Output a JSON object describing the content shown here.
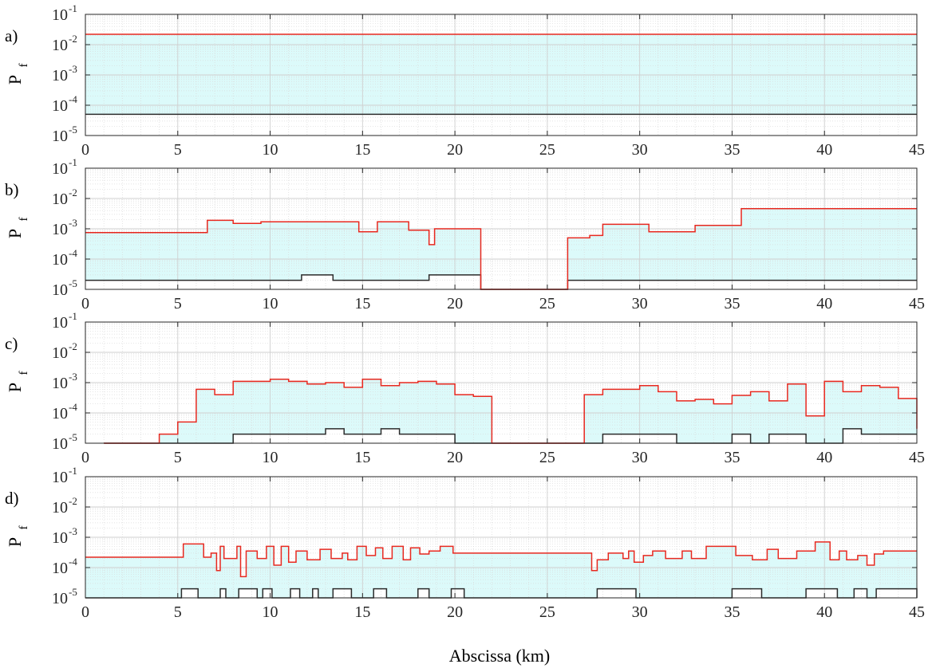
{
  "figure": {
    "xlabel": "Abscissa (km)",
    "ylabel_main": "P",
    "ylabel_sub": "f",
    "colors": {
      "upper": "#e8281f",
      "lower": "#2b2b2b",
      "fill": "#dcfafa",
      "grid": "#d9d9d9"
    }
  },
  "chart_data": [
    {
      "type": "line",
      "panel": "a)",
      "xlim": [
        0,
        45
      ],
      "ylim": [
        1e-05,
        0.1
      ],
      "yscale": "log",
      "xticks": [
        0,
        5,
        10,
        15,
        20,
        25,
        30,
        35,
        40,
        45
      ],
      "ytick_exponents": [
        -5,
        -4,
        -3,
        -2,
        -1
      ],
      "grid": true,
      "series": [
        {
          "role": "upper",
          "x": [
            0,
            45
          ],
          "y": [
            0.022,
            0.022
          ]
        },
        {
          "role": "lower",
          "x": [
            0,
            45
          ],
          "y": [
            5e-05,
            5e-05
          ]
        }
      ]
    },
    {
      "type": "line",
      "panel": "b)",
      "xlim": [
        0,
        45
      ],
      "ylim": [
        1e-05,
        0.1
      ],
      "yscale": "log",
      "xticks": [
        0,
        5,
        10,
        15,
        20,
        25,
        30,
        35,
        40,
        45
      ],
      "ytick_exponents": [
        -5,
        -4,
        -3,
        -2,
        -1
      ],
      "grid": true,
      "series": [
        {
          "role": "upper",
          "x": [
            0,
            6.6,
            8,
            9.5,
            12.5,
            14.8,
            15.8,
            17.5,
            18.6,
            18.9,
            21.4,
            26.1,
            27.3,
            28,
            30.5,
            33,
            35.5,
            45
          ],
          "y": [
            0.00075,
            0.0019,
            0.0015,
            0.0017,
            0.0017,
            0.0008,
            0.0017,
            0.0009,
            0.0003,
            0.001,
            1e-05,
            0.0005,
            0.0006,
            0.0014,
            0.0008,
            0.0013,
            0.0046,
            0.0046
          ]
        },
        {
          "role": "lower",
          "x": [
            0,
            11.7,
            13.4,
            18.6,
            21.4,
            26.1,
            45
          ],
          "y": [
            2e-05,
            3e-05,
            2e-05,
            3e-05,
            1e-05,
            2e-05,
            2e-05
          ]
        }
      ]
    },
    {
      "type": "line",
      "panel": "c)",
      "xlim": [
        0,
        45
      ],
      "ylim": [
        1e-05,
        0.1
      ],
      "yscale": "log",
      "xticks": [
        0,
        5,
        10,
        15,
        20,
        25,
        30,
        35,
        40,
        45
      ],
      "ytick_exponents": [
        -5,
        -4,
        -3,
        -2,
        -1
      ],
      "grid": true,
      "series": [
        {
          "role": "upper",
          "x": [
            1,
            4,
            5,
            6,
            7,
            8,
            9,
            10,
            11,
            12,
            13,
            14,
            15,
            16,
            17,
            18,
            19,
            20,
            21,
            22,
            27,
            28,
            29,
            30,
            31,
            32,
            33,
            34,
            35,
            36,
            37,
            38,
            39,
            40,
            41,
            42,
            43,
            44,
            45
          ],
          "y": [
            1e-05,
            2e-05,
            5e-05,
            0.0006,
            0.0004,
            0.0011,
            0.0011,
            0.0013,
            0.0011,
            0.0009,
            0.001,
            0.0007,
            0.0013,
            0.0008,
            0.001,
            0.0011,
            0.0009,
            0.0004,
            0.00035,
            1e-05,
            0.0004,
            0.0006,
            0.0006,
            0.0008,
            0.0005,
            0.00025,
            0.00028,
            0.0002,
            0.00038,
            0.0005,
            0.00025,
            0.0009,
            8e-05,
            0.0011,
            0.0005,
            0.0008,
            0.0007,
            0.0003,
            3e-05
          ]
        },
        {
          "role": "lower",
          "x": [
            1,
            8,
            13,
            14,
            16,
            17,
            20,
            28,
            32,
            35,
            36,
            37,
            39,
            41,
            42,
            45
          ],
          "y": [
            1e-05,
            2e-05,
            3e-05,
            2e-05,
            3e-05,
            2e-05,
            1e-05,
            2e-05,
            1e-05,
            2e-05,
            1e-05,
            2e-05,
            1e-05,
            3e-05,
            2e-05,
            2e-05
          ]
        }
      ]
    },
    {
      "type": "line",
      "panel": "d)",
      "xlim": [
        0,
        45
      ],
      "ylim": [
        1e-05,
        0.1
      ],
      "yscale": "log",
      "xticks": [
        0,
        5,
        10,
        15,
        20,
        25,
        30,
        35,
        40,
        45
      ],
      "ytick_exponents": [
        -5,
        -4,
        -3,
        -2,
        -1
      ],
      "grid": true,
      "series": [
        {
          "role": "upper",
          "x": [
            0,
            5.3,
            6.4,
            6.8,
            7.1,
            7.3,
            7.5,
            8.2,
            8.4,
            8.7,
            9.3,
            9.8,
            10.2,
            10.6,
            11,
            11.4,
            12,
            12.7,
            13.3,
            13.9,
            14.2,
            14.7,
            15.2,
            15.7,
            16.1,
            16.6,
            17.2,
            17.6,
            18.1,
            18.6,
            19.2,
            19.9,
            27.4,
            27.7,
            28.3,
            29.1,
            29.4,
            29.7,
            30.2,
            30.7,
            31.4,
            32.3,
            32.8,
            33.6,
            35.2,
            36.1,
            36.9,
            37.5,
            38.5,
            39.5,
            40.3,
            40.8,
            41.2,
            41.8,
            42.3,
            42.7,
            43.2,
            45
          ],
          "y": [
            0.00022,
            0.0006,
            0.00022,
            0.0003,
            8e-05,
            0.0005,
            0.0002,
            0.0005,
            5e-05,
            0.00035,
            0.0002,
            0.0005,
            0.00012,
            0.0005,
            0.00015,
            0.00035,
            0.00018,
            0.0004,
            0.0002,
            0.0003,
            0.00018,
            0.0005,
            0.00025,
            0.00045,
            0.0002,
            0.0005,
            0.00018,
            0.00045,
            0.00028,
            0.00035,
            0.0005,
            0.0003,
            8e-05,
            0.00018,
            0.0003,
            0.0002,
            0.00035,
            0.00015,
            0.00025,
            0.00035,
            0.0002,
            0.00035,
            0.0002,
            0.0005,
            0.00025,
            0.00018,
            0.0004,
            0.0002,
            0.00035,
            0.0007,
            0.00018,
            0.00035,
            0.00018,
            0.00025,
            0.00012,
            0.00028,
            0.00035,
            0.00035
          ]
        },
        {
          "role": "lower",
          "x": [
            0,
            5.2,
            6.1,
            7.3,
            7.6,
            8.3,
            9.3,
            9.6,
            10.1,
            11.1,
            11.6,
            12.3,
            12.6,
            13.4,
            14.4,
            15.6,
            16.3,
            18,
            18.6,
            19.8,
            20.5,
            27.7,
            29.8,
            35,
            36.6,
            39,
            40.7,
            41.6,
            42.3,
            42.8,
            45
          ],
          "y": [
            1e-05,
            2e-05,
            1e-05,
            2e-05,
            1e-05,
            2e-05,
            1e-05,
            2e-05,
            1e-05,
            2e-05,
            1e-05,
            2e-05,
            1e-05,
            2e-05,
            1e-05,
            2e-05,
            1e-05,
            2e-05,
            1e-05,
            2e-05,
            1e-05,
            2e-05,
            1e-05,
            2e-05,
            1e-05,
            2e-05,
            1e-05,
            2e-05,
            1e-05,
            2e-05,
            1e-05
          ]
        }
      ]
    }
  ]
}
